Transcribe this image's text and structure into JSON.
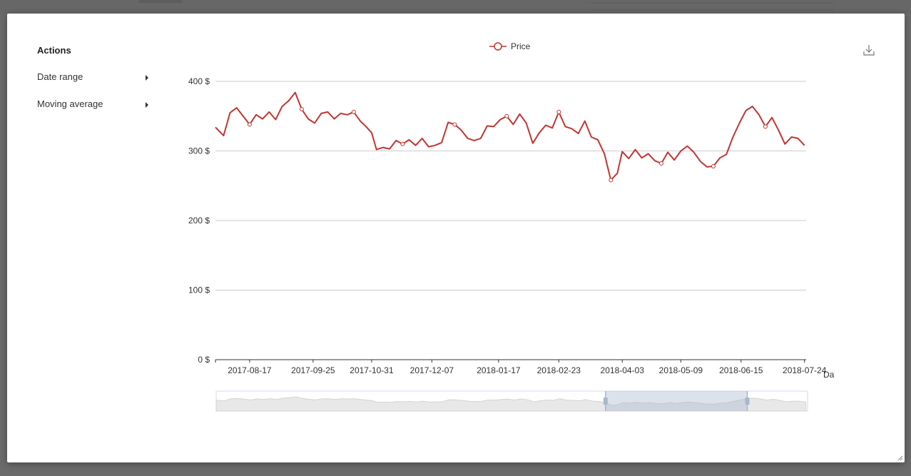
{
  "sidebar": {
    "title": "Actions",
    "items": [
      {
        "label": "Date range"
      },
      {
        "label": "Moving average"
      }
    ]
  },
  "toolbar": {
    "download_icon": "download-icon"
  },
  "colors": {
    "series": "#c23531",
    "grid": "#cccccc",
    "axis": "#333333",
    "slider_fill": "#d3dbe6",
    "slider_handle": "#a7b7cc"
  },
  "chart_data": {
    "type": "line",
    "legend": [
      "Price"
    ],
    "legend_position": "top-center",
    "xlabel": "Date",
    "ylabel": "",
    "ylim": [
      0,
      400
    ],
    "y_ticks": [
      "0 $",
      "100 $",
      "200 $",
      "300 $",
      "400 $"
    ],
    "x_ticks": [
      "2017-08-17",
      "2017-09-25",
      "2017-10-31",
      "2017-12-07",
      "2018-01-17",
      "2018-02-23",
      "2018-04-03",
      "2018-05-09",
      "2018-06-15",
      "2018-07-24"
    ],
    "x_start": "2017-07-27",
    "x_end": "2018-07-25",
    "grid": true,
    "series": [
      {
        "name": "Price",
        "x": [
          "2017-07-27",
          "2017-08-01",
          "2017-08-05",
          "2017-08-09",
          "2017-08-13",
          "2017-08-17",
          "2017-08-21",
          "2017-08-25",
          "2017-08-29",
          "2017-09-02",
          "2017-09-06",
          "2017-09-10",
          "2017-09-14",
          "2017-09-18",
          "2017-09-22",
          "2017-09-26",
          "2017-09-30",
          "2017-10-04",
          "2017-10-08",
          "2017-10-12",
          "2017-10-16",
          "2017-10-20",
          "2017-10-24",
          "2017-10-28",
          "2017-10-31",
          "2017-11-03",
          "2017-11-07",
          "2017-11-11",
          "2017-11-15",
          "2017-11-19",
          "2017-11-23",
          "2017-11-27",
          "2017-12-01",
          "2017-12-05",
          "2017-12-09",
          "2017-12-13",
          "2017-12-17",
          "2017-12-21",
          "2017-12-25",
          "2017-12-29",
          "2018-01-02",
          "2018-01-06",
          "2018-01-10",
          "2018-01-14",
          "2018-01-18",
          "2018-01-22",
          "2018-01-26",
          "2018-01-30",
          "2018-02-03",
          "2018-02-07",
          "2018-02-11",
          "2018-02-15",
          "2018-02-19",
          "2018-02-23",
          "2018-02-27",
          "2018-03-03",
          "2018-03-07",
          "2018-03-11",
          "2018-03-15",
          "2018-03-19",
          "2018-03-23",
          "2018-03-27",
          "2018-03-31",
          "2018-04-03",
          "2018-04-07",
          "2018-04-11",
          "2018-04-15",
          "2018-04-19",
          "2018-04-23",
          "2018-04-27",
          "2018-05-01",
          "2018-05-05",
          "2018-05-09",
          "2018-05-13",
          "2018-05-17",
          "2018-05-21",
          "2018-05-25",
          "2018-05-29",
          "2018-06-02",
          "2018-06-06",
          "2018-06-10",
          "2018-06-14",
          "2018-06-18",
          "2018-06-22",
          "2018-06-26",
          "2018-06-30",
          "2018-07-04",
          "2018-07-08",
          "2018-07-12",
          "2018-07-16",
          "2018-07-20",
          "2018-07-24"
        ],
        "values": [
          334,
          322,
          355,
          362,
          350,
          338,
          352,
          346,
          356,
          345,
          364,
          372,
          384,
          360,
          346,
          340,
          354,
          356,
          346,
          354,
          352,
          356,
          343,
          334,
          326,
          302,
          305,
          303,
          315,
          310,
          316,
          308,
          318,
          306,
          308,
          312,
          341,
          338,
          330,
          318,
          315,
          318,
          336,
          335,
          345,
          350,
          338,
          353,
          340,
          311,
          326,
          337,
          333,
          356,
          335,
          332,
          325,
          343,
          320,
          316,
          296,
          258,
          268,
          299,
          289,
          302,
          290,
          296,
          286,
          282,
          298,
          287,
          300,
          307,
          298,
          285,
          277,
          278,
          290,
          295,
          320,
          340,
          358,
          364,
          352,
          335,
          348,
          330,
          310,
          320,
          318,
          308
        ]
      }
    ],
    "slider_window": [
      "2018-03-23",
      "2018-06-18"
    ]
  }
}
